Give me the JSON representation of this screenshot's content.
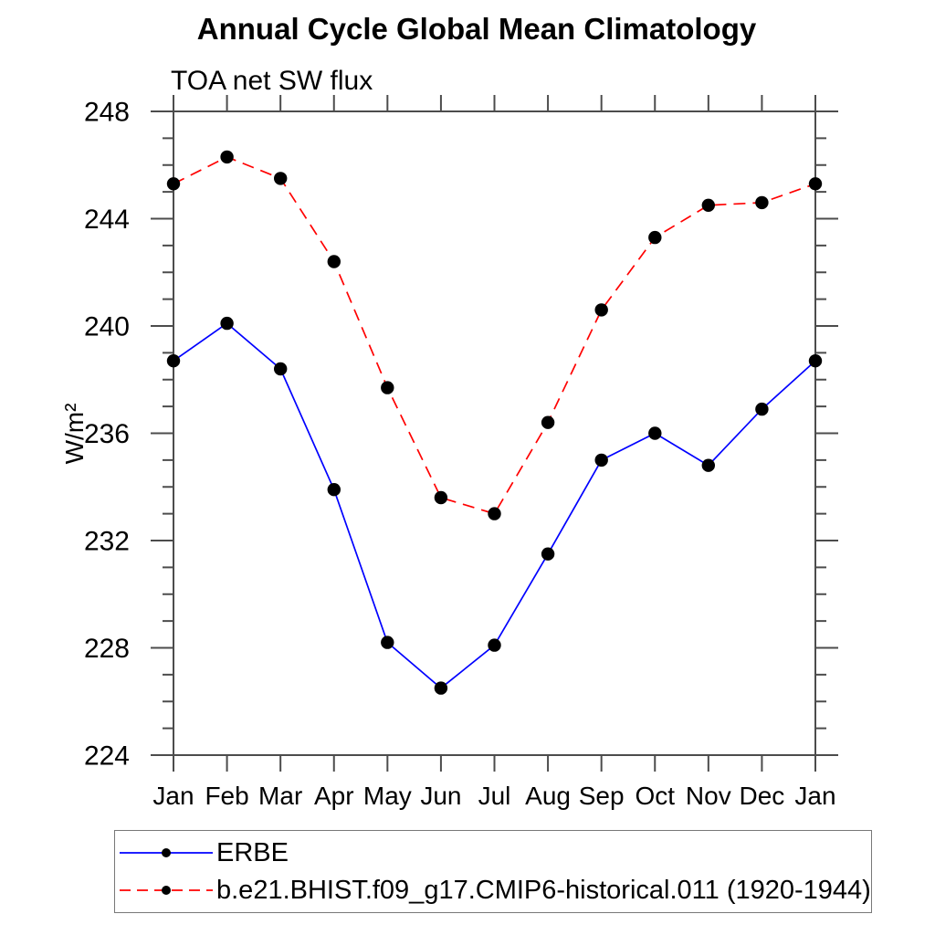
{
  "chart_data": {
    "type": "line",
    "title": "Annual Cycle Global Mean Climatology",
    "subtitle": "TOA net SW flux",
    "ylabel": "W/m²",
    "x_categories": [
      "Jan",
      "Feb",
      "Mar",
      "Apr",
      "May",
      "Jun",
      "Jul",
      "Aug",
      "Sep",
      "Oct",
      "Nov",
      "Dec",
      "Jan"
    ],
    "ylim": [
      224,
      248
    ],
    "y_major_ticks": [
      224,
      228,
      232,
      236,
      240,
      244,
      248
    ],
    "y_minor_tick_step": 1,
    "grid": false,
    "legend_position": "below-plot-left",
    "series": [
      {
        "name": "ERBE",
        "color": "#0000ff",
        "line_style": "solid",
        "marker": "filled-circle",
        "marker_color": "#000000",
        "values": [
          238.7,
          240.1,
          238.4,
          233.9,
          228.2,
          226.5,
          228.1,
          231.5,
          235.0,
          236.0,
          234.8,
          236.9,
          238.7
        ]
      },
      {
        "name": "b.e21.BHIST.f09_g17.CMIP6-historical.011 (1920-1944)",
        "color": "#ff0000",
        "line_style": "dashed",
        "marker": "filled-circle",
        "marker_color": "#000000",
        "values": [
          245.3,
          246.3,
          245.5,
          242.4,
          237.7,
          233.6,
          233.0,
          236.4,
          240.6,
          243.3,
          244.5,
          244.6,
          245.3
        ]
      }
    ]
  },
  "colors": {
    "background": "#ffffff",
    "axis": "#4c4c4c",
    "text": "#000000",
    "legend_border": "#787878"
  }
}
